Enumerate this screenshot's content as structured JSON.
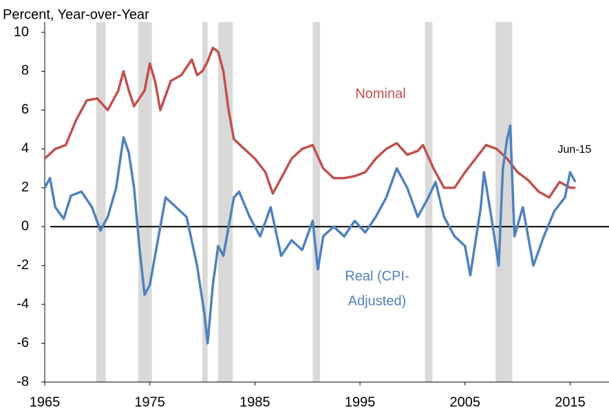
{
  "chart_data": {
    "type": "line",
    "y_axis_label": "Percent, Year-over-Year",
    "xlim": [
      1965,
      2018.7
    ],
    "xticks": [
      1965,
      1975,
      1985,
      1995,
      2005,
      2015
    ],
    "ylim": [
      -8,
      10
    ],
    "yticks": [
      -8,
      -6,
      -4,
      -2,
      0,
      2,
      4,
      6,
      8,
      10
    ],
    "recessions": [
      [
        1969.9,
        1970.8
      ],
      [
        1973.9,
        1975.2
      ],
      [
        1980.0,
        1980.5
      ],
      [
        1981.5,
        1982.9
      ],
      [
        1990.5,
        1991.2
      ],
      [
        2001.2,
        2001.9
      ],
      [
        2007.9,
        2009.5
      ]
    ],
    "recession_color": "#d9d9d9",
    "annotations": [
      "Nominal",
      "Real (CPI-",
      "Adjusted)",
      "Jun-15"
    ],
    "series": [
      {
        "name": "Nominal",
        "color": "#c0504d",
        "x": [
          1965,
          1966,
          1967,
          1968,
          1969,
          1970,
          1971,
          1972,
          1972.5,
          1973,
          1973.5,
          1974.5,
          1975,
          1975.5,
          1976,
          1977,
          1978,
          1979,
          1979.5,
          1980,
          1980.5,
          1981,
          1981.5,
          1982,
          1982.5,
          1983,
          1984,
          1985,
          1986,
          1986.7,
          1987.5,
          1988.5,
          1989.5,
          1990.5,
          1991.5,
          1992.5,
          1993.5,
          1994.5,
          1995.5,
          1996.5,
          1997.5,
          1998.5,
          1999.5,
          2000.5,
          2001,
          2002,
          2003,
          2004,
          2005,
          2006,
          2007,
          2008,
          2009,
          2010,
          2011,
          2012,
          2013,
          2014,
          2015,
          2015.5
        ],
        "values": [
          3.5,
          4.0,
          4.2,
          5.5,
          6.5,
          6.6,
          6.0,
          7.0,
          8.0,
          7.0,
          6.2,
          7.0,
          8.4,
          7.5,
          6.0,
          7.5,
          7.8,
          8.6,
          7.8,
          8.0,
          8.5,
          9.2,
          9.0,
          8.0,
          6.0,
          4.5,
          4.0,
          3.5,
          2.8,
          1.7,
          2.5,
          3.5,
          4.0,
          4.2,
          3.0,
          2.5,
          2.5,
          2.6,
          2.8,
          3.5,
          4.0,
          4.3,
          3.7,
          3.9,
          4.2,
          3.0,
          2.0,
          2.0,
          2.8,
          3.5,
          4.2,
          4.0,
          3.5,
          2.8,
          2.4,
          1.8,
          1.5,
          2.3,
          2.0,
          2.0
        ]
      },
      {
        "name": "Real (CPI-Adjusted)",
        "color": "#4f81bd",
        "x": [
          1965,
          1965.5,
          1966,
          1966.8,
          1967.5,
          1968.5,
          1969.5,
          1970.3,
          1971,
          1971.8,
          1972.5,
          1973,
          1973.5,
          1974,
          1974.5,
          1975,
          1975.5,
          1976.5,
          1977.5,
          1978.5,
          1979.5,
          1980.2,
          1980.5,
          1981,
          1981.5,
          1982,
          1983,
          1983.5,
          1984.5,
          1985.5,
          1986.5,
          1987.5,
          1988.5,
          1989.5,
          1990.5,
          1991,
          1991.5,
          1992.5,
          1993.5,
          1994.5,
          1995.5,
          1996.5,
          1997.5,
          1998.5,
          1999.5,
          2000.5,
          2001.5,
          2002.2,
          2003,
          2004,
          2005,
          2005.5,
          2006.5,
          2006.8,
          2007.5,
          2008.2,
          2008.6,
          2009,
          2009.3,
          2009.7,
          2010.5,
          2011.5,
          2012.5,
          2013.5,
          2014.5,
          2015,
          2015.5
        ],
        "values": [
          2.0,
          2.5,
          1.0,
          0.4,
          1.6,
          1.8,
          1.0,
          -0.2,
          0.5,
          2.0,
          4.6,
          3.8,
          2.0,
          -1.0,
          -3.5,
          -3.0,
          -1.5,
          1.5,
          1.0,
          0.5,
          -2.0,
          -4.5,
          -6.0,
          -3.0,
          -1.0,
          -1.5,
          1.5,
          1.8,
          0.5,
          -0.5,
          1.0,
          -1.5,
          -0.7,
          -1.2,
          0.3,
          -2.2,
          -0.5,
          0.0,
          -0.5,
          0.3,
          -0.3,
          0.5,
          1.5,
          3.0,
          2.0,
          0.5,
          1.5,
          2.3,
          0.5,
          -0.5,
          -1.0,
          -2.5,
          1.0,
          2.8,
          0.5,
          -2.0,
          3.0,
          4.5,
          5.2,
          -0.5,
          1.0,
          -2.0,
          -0.5,
          0.8,
          1.5,
          2.8,
          2.3
        ]
      }
    ]
  }
}
